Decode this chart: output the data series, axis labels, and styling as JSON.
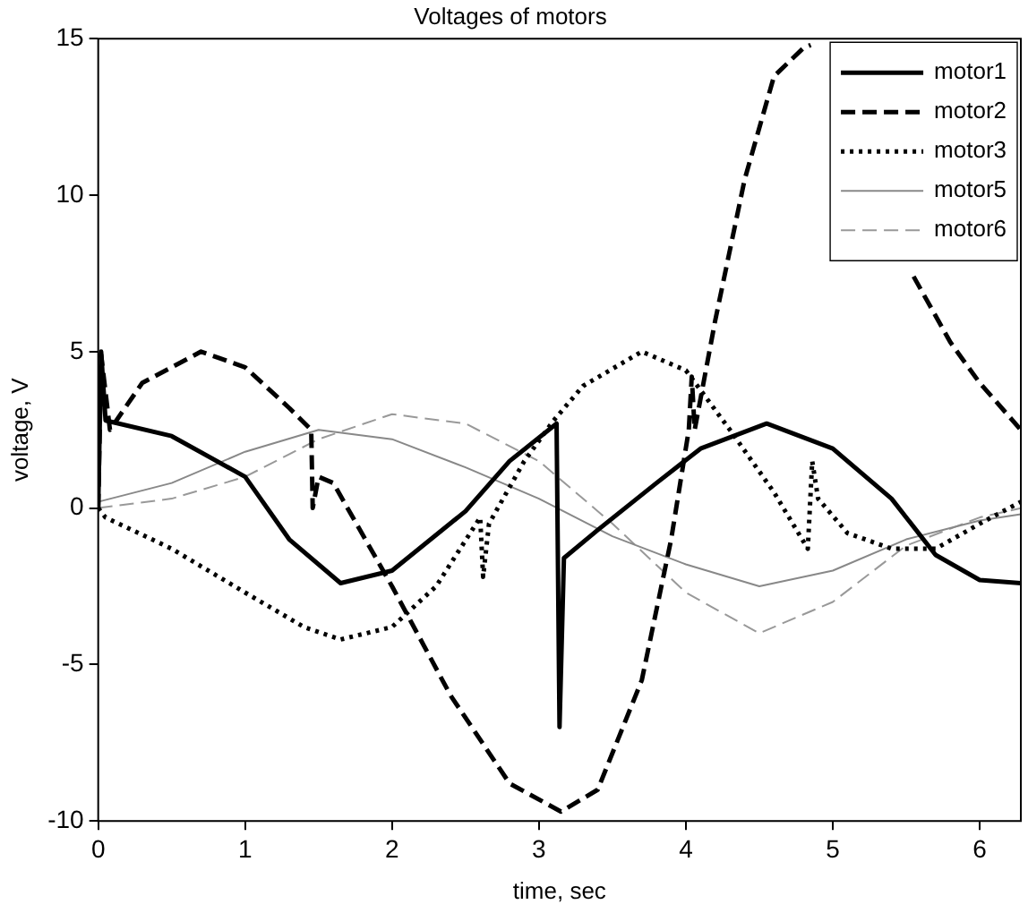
{
  "chart_data": {
    "type": "line",
    "title": "Voltages of motors",
    "xlabel": "time, sec",
    "ylabel": "voltage, V",
    "xlim": [
      0,
      6.28
    ],
    "ylim": [
      -10,
      15
    ],
    "xticks": [
      0,
      1,
      2,
      3,
      4,
      5,
      6
    ],
    "yticks": [
      -10,
      -5,
      0,
      5,
      10,
      15
    ],
    "grid": false,
    "legend": "top right",
    "marker": "none",
    "series": [
      {
        "name": "motor1",
        "color": "#000000",
        "line_style": "solid",
        "x": [
          0,
          0.02,
          0.05,
          0.5,
          1.0,
          1.3,
          1.65,
          2.0,
          2.5,
          2.8,
          3.12,
          3.14,
          3.17,
          3.4,
          3.8,
          4.1,
          4.55,
          5.0,
          5.4,
          5.7,
          6.0,
          6.28
        ],
        "values": [
          0,
          5,
          2.8,
          2.3,
          1.0,
          -1.0,
          -2.4,
          -2.0,
          -0.1,
          1.5,
          2.7,
          -7,
          -1.6,
          -0.7,
          0.8,
          1.9,
          2.7,
          1.9,
          0.3,
          -1.5,
          -2.3,
          -2.4
        ]
      },
      {
        "name": "motor2",
        "color": "#000000",
        "line_style": "dashed",
        "x": [
          0,
          0.02,
          0.08,
          0.3,
          0.7,
          1.0,
          1.3,
          1.45,
          1.46,
          1.5,
          1.6,
          2.0,
          2.4,
          2.8,
          3.15,
          3.4,
          3.7,
          3.9,
          4.02,
          4.04,
          4.06,
          4.2,
          4.4,
          4.6,
          4.8,
          4.85,
          5.2,
          5.55,
          5.8,
          6.0,
          6.28
        ],
        "values": [
          0,
          4.9,
          2.5,
          4.0,
          5.0,
          4.5,
          3.2,
          2.5,
          0,
          1.0,
          0.8,
          -2.5,
          -6.0,
          -8.8,
          -9.7,
          -9.0,
          -5.5,
          -1.0,
          2.5,
          4.2,
          2.5,
          6.0,
          10.5,
          13.8,
          14.7,
          14.8,
          null,
          7.4,
          5.3,
          4.0,
          2.5
        ]
      },
      {
        "name": "motor3",
        "color": "#000000",
        "line_style": "dotted",
        "x": [
          0,
          0.05,
          0.5,
          1.0,
          1.4,
          1.65,
          2.0,
          2.3,
          2.6,
          2.62,
          2.66,
          2.9,
          3.1,
          3.3,
          3.7,
          4.0,
          4.3,
          4.6,
          4.83,
          4.86,
          4.9,
          5.1,
          5.4,
          5.7,
          6.0,
          6.28
        ],
        "values": [
          0,
          -0.3,
          -1.3,
          -2.7,
          -3.8,
          -4.2,
          -3.8,
          -2.5,
          -0.3,
          -2.2,
          -0.5,
          1.5,
          2.8,
          3.9,
          5.0,
          4.4,
          2.5,
          0.5,
          -1.3,
          1.5,
          0.3,
          -0.8,
          -1.3,
          -1.3,
          -0.5,
          0.2
        ]
      },
      {
        "name": "motor5",
        "color": "#888888",
        "line_style": "solid",
        "x": [
          0,
          0.5,
          1.0,
          1.5,
          2.0,
          2.5,
          3.0,
          3.5,
          4.0,
          4.5,
          5.0,
          5.5,
          6.0,
          6.28
        ],
        "values": [
          0.2,
          0.8,
          1.8,
          2.5,
          2.2,
          1.3,
          0.3,
          -0.9,
          -1.8,
          -2.5,
          -2.0,
          -1.0,
          -0.4,
          -0.2
        ]
      },
      {
        "name": "motor6",
        "color": "#999999",
        "line_style": "dashed",
        "x": [
          0,
          0.5,
          1.0,
          1.5,
          2.0,
          2.5,
          3.0,
          3.5,
          4.0,
          4.5,
          5.0,
          5.5,
          6.0,
          6.28
        ],
        "values": [
          0,
          0.3,
          1.0,
          2.2,
          3.0,
          2.7,
          1.5,
          -0.5,
          -2.7,
          -4.0,
          -3.0,
          -1.2,
          -0.3,
          0
        ]
      }
    ]
  }
}
